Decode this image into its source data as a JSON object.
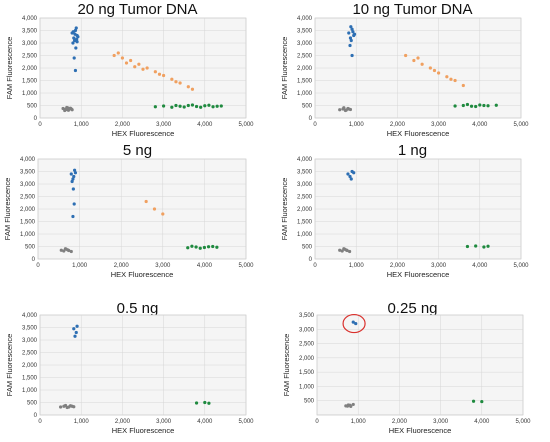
{
  "chart_data": [
    {
      "type": "scatter",
      "title": "20 ng Tumor DNA",
      "xlabel": "HEX Fluorescence",
      "ylabel": "FAM Fluorescence",
      "xlim": [
        0,
        5000
      ],
      "ylim": [
        0,
        4000
      ],
      "xticks": [
        "0",
        "1,000",
        "2,000",
        "3,000",
        "4,000",
        "5,000"
      ],
      "yticks": [
        "0",
        "500",
        "1,000",
        "1,500",
        "2,000",
        "2,500",
        "3,000",
        "3,500",
        "4,000"
      ],
      "grid": true,
      "clusters": [
        {
          "color": "#808080",
          "points": [
            [
              560,
              380
            ],
            [
              620,
              350
            ],
            [
              680,
              400
            ],
            [
              720,
              370
            ],
            [
              780,
              330
            ],
            [
              650,
              420
            ],
            [
              600,
              300
            ],
            [
              700,
              360
            ],
            [
              740,
              390
            ],
            [
              640,
              340
            ],
            [
              690,
              310
            ],
            [
              760,
              360
            ]
          ]
        },
        {
          "color": "#2e6fb3",
          "points": [
            [
              780,
              3400
            ],
            [
              820,
              3200
            ],
            [
              860,
              3500
            ],
            [
              900,
              3300
            ],
            [
              840,
              3100
            ],
            [
              880,
              3600
            ],
            [
              800,
              3000
            ],
            [
              920,
              3250
            ],
            [
              850,
              3350
            ],
            [
              870,
              2800
            ],
            [
              830,
              2400
            ],
            [
              860,
              1900
            ],
            [
              890,
              3150
            ],
            [
              810,
              3450
            ],
            [
              900,
              3050
            ]
          ]
        },
        {
          "color": "#f0a060",
          "points": [
            [
              1800,
              2500
            ],
            [
              2000,
              2400
            ],
            [
              2200,
              2300
            ],
            [
              2400,
              2150
            ],
            [
              2600,
              2000
            ],
            [
              2800,
              1850
            ],
            [
              3000,
              1700
            ],
            [
              3200,
              1550
            ],
            [
              3400,
              1400
            ],
            [
              3600,
              1250
            ],
            [
              2100,
              2200
            ],
            [
              2500,
              1950
            ],
            [
              2900,
              1750
            ],
            [
              3300,
              1450
            ],
            [
              3700,
              1150
            ],
            [
              1900,
              2600
            ],
            [
              2300,
              2050
            ]
          ]
        },
        {
          "color": "#1f8a3f",
          "points": [
            [
              2800,
              450
            ],
            [
              3000,
              480
            ],
            [
              3200,
              430
            ],
            [
              3400,
              470
            ],
            [
              3600,
              500
            ],
            [
              3800,
              460
            ],
            [
              4000,
              490
            ],
            [
              4200,
              450
            ],
            [
              4400,
              480
            ],
            [
              3700,
              520
            ],
            [
              3900,
              430
            ],
            [
              4100,
              510
            ],
            [
              3500,
              440
            ],
            [
              4300,
              470
            ],
            [
              3300,
              500
            ]
          ]
        }
      ]
    },
    {
      "type": "scatter",
      "title": "10 ng Tumor DNA",
      "xlabel": "HEX Fluorescence",
      "ylabel": "FAM Fluorescence",
      "xlim": [
        0,
        5000
      ],
      "ylim": [
        0,
        4000
      ],
      "xticks": [
        "0",
        "1,000",
        "2,000",
        "3,000",
        "4,000",
        "5,000"
      ],
      "yticks": [
        "0",
        "500",
        "1,000",
        "1,500",
        "2,000",
        "2,500",
        "3,000",
        "3,500",
        "4,000"
      ],
      "grid": true,
      "clusters": [
        {
          "color": "#808080",
          "points": [
            [
              600,
              330
            ],
            [
              680,
              360
            ],
            [
              740,
              300
            ],
            [
              800,
              380
            ],
            [
              860,
              340
            ],
            [
              700,
              410
            ],
            [
              760,
              320
            ],
            [
              820,
              360
            ]
          ]
        },
        {
          "color": "#2e6fb3",
          "points": [
            [
              820,
              3400
            ],
            [
              860,
              3200
            ],
            [
              900,
              3550
            ],
            [
              940,
              3300
            ],
            [
              880,
              3100
            ],
            [
              920,
              3450
            ],
            [
              850,
              2900
            ],
            [
              900,
              2500
            ],
            [
              870,
              3650
            ],
            [
              960,
              3350
            ]
          ]
        },
        {
          "color": "#f0a060",
          "points": [
            [
              2200,
              2500
            ],
            [
              2400,
              2300
            ],
            [
              2600,
              2150
            ],
            [
              2800,
              2000
            ],
            [
              3000,
              1800
            ],
            [
              3200,
              1650
            ],
            [
              3400,
              1500
            ],
            [
              3600,
              1300
            ],
            [
              2500,
              2400
            ],
            [
              2900,
              1900
            ],
            [
              3300,
              1550
            ]
          ]
        },
        {
          "color": "#1f8a3f",
          "points": [
            [
              3400,
              480
            ],
            [
              3600,
              500
            ],
            [
              3800,
              470
            ],
            [
              4000,
              520
            ],
            [
              4200,
              490
            ],
            [
              4400,
              510
            ],
            [
              3700,
              540
            ],
            [
              3900,
              460
            ],
            [
              4100,
              500
            ]
          ]
        }
      ]
    },
    {
      "type": "scatter",
      "title": "5 ng",
      "xlabel": "HEX Fluorescence",
      "ylabel": "FAM Fluorescence",
      "xlim": [
        0,
        5000
      ],
      "ylim": [
        0,
        4000
      ],
      "xticks": [
        "0",
        "1,000",
        "2,000",
        "3,000",
        "4,000",
        "5,000"
      ],
      "yticks": [
        "0",
        "500",
        "1,000",
        "1,500",
        "2,000",
        "2,500",
        "3,000",
        "3,500",
        "4,000"
      ],
      "grid": true,
      "clusters": [
        {
          "color": "#808080",
          "points": [
            [
              560,
              350
            ],
            [
              620,
              320
            ],
            [
              680,
              390
            ],
            [
              740,
              340
            ],
            [
              800,
              300
            ],
            [
              660,
              410
            ],
            [
              720,
              360
            ]
          ]
        },
        {
          "color": "#2e6fb3",
          "points": [
            [
              800,
              3400
            ],
            [
              840,
              3200
            ],
            [
              880,
              3550
            ],
            [
              860,
              3300
            ],
            [
              820,
              3100
            ],
            [
              900,
              3450
            ],
            [
              850,
              2800
            ],
            [
              870,
              2200
            ],
            [
              840,
              1700
            ]
          ]
        },
        {
          "color": "#f0a060",
          "points": [
            [
              2600,
              2300
            ],
            [
              2800,
              2000
            ],
            [
              3000,
              1800
            ]
          ]
        },
        {
          "color": "#1f8a3f",
          "points": [
            [
              3600,
              450
            ],
            [
              3800,
              480
            ],
            [
              4000,
              460
            ],
            [
              4200,
              500
            ],
            [
              3900,
              430
            ],
            [
              4100,
              490
            ],
            [
              4300,
              470
            ],
            [
              3700,
              510
            ]
          ]
        }
      ]
    },
    {
      "type": "scatter",
      "title": "1 ng",
      "xlabel": "HEX Fluorescence",
      "ylabel": "FAM Fluorescence",
      "xlim": [
        0,
        5000
      ],
      "ylim": [
        0,
        4000
      ],
      "xticks": [
        "0",
        "1,000",
        "2,000",
        "3,000",
        "4,000",
        "5,000"
      ],
      "yticks": [
        "0",
        "500",
        "1,000",
        "1,500",
        "2,000",
        "2,500",
        "3,000",
        "3,500",
        "4,000"
      ],
      "grid": true,
      "clusters": [
        {
          "color": "#808080",
          "points": [
            [
              600,
              350
            ],
            [
              660,
              320
            ],
            [
              720,
              390
            ],
            [
              780,
              340
            ],
            [
              840,
              300
            ],
            [
              700,
              410
            ],
            [
              760,
              360
            ]
          ]
        },
        {
          "color": "#2e6fb3",
          "points": [
            [
              800,
              3400
            ],
            [
              850,
              3300
            ],
            [
              900,
              3500
            ],
            [
              880,
              3200
            ],
            [
              940,
              3450
            ]
          ]
        },
        {
          "color": "#1f8a3f",
          "points": [
            [
              3700,
              500
            ],
            [
              3900,
              520
            ],
            [
              4100,
              480
            ],
            [
              4200,
              510
            ]
          ]
        }
      ]
    },
    {
      "type": "scatter",
      "title": "0.5 ng",
      "xlabel": "HEX Fluorescence",
      "ylabel": "FAM Fluorescence",
      "xlim": [
        0,
        5000
      ],
      "ylim": [
        0,
        4000
      ],
      "xticks": [
        "0",
        "1,000",
        "2,000",
        "3,000",
        "4,000",
        "5,000"
      ],
      "yticks": [
        "0",
        "500",
        "1,000",
        "1,500",
        "2,000",
        "2,500",
        "3,000",
        "3,500",
        "4,000"
      ],
      "grid": true,
      "clusters": [
        {
          "color": "#808080",
          "points": [
            [
              500,
              320
            ],
            [
              580,
              350
            ],
            [
              660,
              300
            ],
            [
              740,
              370
            ],
            [
              820,
              330
            ],
            [
              620,
              380
            ],
            [
              700,
              320
            ],
            [
              780,
              350
            ]
          ]
        },
        {
          "color": "#2e6fb3",
          "points": [
            [
              820,
              3450
            ],
            [
              880,
              3300
            ],
            [
              900,
              3550
            ],
            [
              850,
              3150
            ]
          ]
        },
        {
          "color": "#1f8a3f",
          "points": [
            [
              3800,
              480
            ],
            [
              4000,
              500
            ],
            [
              4100,
              470
            ]
          ]
        }
      ]
    },
    {
      "type": "scatter",
      "title": "0.25 ng",
      "xlabel": "HEX Fluorescence",
      "ylabel": "FAM Fluorescence",
      "xlim": [
        0,
        5000
      ],
      "ylim": [
        0,
        3500
      ],
      "xticks": [
        "0",
        "1,000",
        "2,000",
        "3,000",
        "4,000",
        "5,000"
      ],
      "yticks": [
        "500",
        "1,000",
        "1,500",
        "2,000",
        "2,500",
        "3,000",
        "3,500"
      ],
      "grid": true,
      "clusters": [
        {
          "color": "#808080",
          "points": [
            [
              700,
              320
            ],
            [
              760,
              350
            ],
            [
              820,
              300
            ],
            [
              880,
              370
            ],
            [
              800,
              340
            ],
            [
              740,
              310
            ]
          ]
        },
        {
          "color": "#2e6fb3",
          "points": [
            [
              880,
              3250
            ],
            [
              940,
              3200
            ]
          ]
        },
        {
          "color": "#1f8a3f",
          "points": [
            [
              3800,
              480
            ],
            [
              4000,
              470
            ]
          ]
        }
      ],
      "annotations": [
        {
          "shape": "ellipse",
          "color": "#d9302c",
          "center": [
            900,
            3200
          ]
        }
      ]
    }
  ]
}
